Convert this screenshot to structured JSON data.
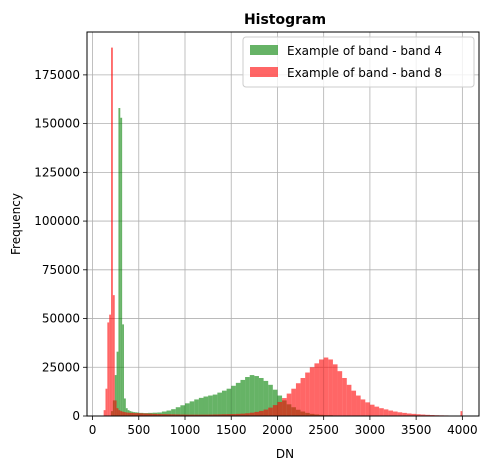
{
  "chart_data": {
    "type": "bar",
    "title": "Histogram",
    "xlabel": "DN",
    "ylabel": "Frequency",
    "xlim": [
      -60,
      4180
    ],
    "ylim": [
      0,
      197000
    ],
    "xticks": [
      0,
      500,
      1000,
      1500,
      2000,
      2500,
      3000,
      3500,
      4000
    ],
    "yticks": [
      0,
      25000,
      50000,
      75000,
      100000,
      125000,
      150000,
      175000
    ],
    "grid": true,
    "legend_position": "top-right",
    "bin_width": 20,
    "series": [
      {
        "name": "Example of band - band 4",
        "color": "#008000",
        "opacity": 0.6,
        "x": [
          200,
          220,
          240,
          260,
          280,
          300,
          320,
          340,
          360,
          380,
          400,
          420,
          440,
          460,
          480,
          500,
          550,
          600,
          650,
          700,
          750,
          800,
          850,
          900,
          950,
          1000,
          1050,
          1100,
          1150,
          1200,
          1250,
          1300,
          1350,
          1400,
          1450,
          1500,
          1550,
          1600,
          1650,
          1700,
          1750,
          1800,
          1850,
          1900,
          1950,
          2000,
          2050,
          2100,
          2150,
          2200,
          2250,
          2300,
          2350,
          2400,
          2450,
          2500,
          2600,
          2700,
          2800
        ],
        "values": [
          2500,
          8000,
          21000,
          33000,
          158000,
          153000,
          47000,
          9000,
          4000,
          3000,
          2500,
          2200,
          2000,
          1900,
          1800,
          1600,
          1500,
          1600,
          1700,
          1800,
          2300,
          2800,
          3500,
          4500,
          5500,
          6500,
          7500,
          8500,
          9300,
          10000,
          10500,
          11000,
          12000,
          13000,
          14000,
          15500,
          17000,
          18500,
          20000,
          21000,
          20500,
          19500,
          18000,
          16000,
          13500,
          10500,
          8000,
          6000,
          4500,
          3200,
          2300,
          1600,
          1100,
          800,
          600,
          400,
          250,
          150,
          100
        ]
      },
      {
        "name": "Example of band - band 8",
        "color": "#ff0000",
        "opacity": 0.6,
        "x": [
          120,
          140,
          160,
          180,
          200,
          220,
          240,
          260,
          280,
          300,
          320,
          340,
          360,
          380,
          400,
          450,
          500,
          550,
          600,
          650,
          700,
          750,
          800,
          850,
          900,
          950,
          1000,
          1050,
          1100,
          1150,
          1200,
          1250,
          1300,
          1350,
          1400,
          1450,
          1500,
          1550,
          1600,
          1650,
          1700,
          1750,
          1800,
          1850,
          1900,
          1950,
          2000,
          2050,
          2100,
          2150,
          2200,
          2250,
          2300,
          2350,
          2400,
          2450,
          2500,
          2550,
          2600,
          2650,
          2700,
          2750,
          2800,
          2850,
          2900,
          2950,
          3000,
          3050,
          3100,
          3150,
          3200,
          3250,
          3300,
          3350,
          3400,
          3450,
          3500,
          3550,
          3600,
          3650,
          3700,
          3750,
          3800,
          3850,
          3900,
          3950,
          3980
        ],
        "values": [
          3000,
          14000,
          48000,
          52000,
          189000,
          62000,
          8000,
          4000,
          3000,
          2500,
          2200,
          2000,
          1800,
          1700,
          1600,
          1500,
          1400,
          1300,
          1200,
          1100,
          1000,
          950,
          900,
          850,
          800,
          750,
          700,
          700,
          700,
          700,
          700,
          750,
          800,
          850,
          900,
          950,
          1000,
          1100,
          1200,
          1400,
          1700,
          2100,
          2600,
          3300,
          4300,
          5600,
          7200,
          9200,
          11500,
          14000,
          16800,
          19500,
          22300,
          25000,
          27000,
          29000,
          30000,
          29000,
          26500,
          23000,
          19500,
          16000,
          13000,
          10500,
          8500,
          7000,
          5800,
          4800,
          4000,
          3400,
          2800,
          2300,
          1900,
          1600,
          1300,
          1100,
          900,
          750,
          600,
          500,
          400,
          350,
          300,
          250,
          200,
          150,
          2500
        ]
      }
    ]
  }
}
